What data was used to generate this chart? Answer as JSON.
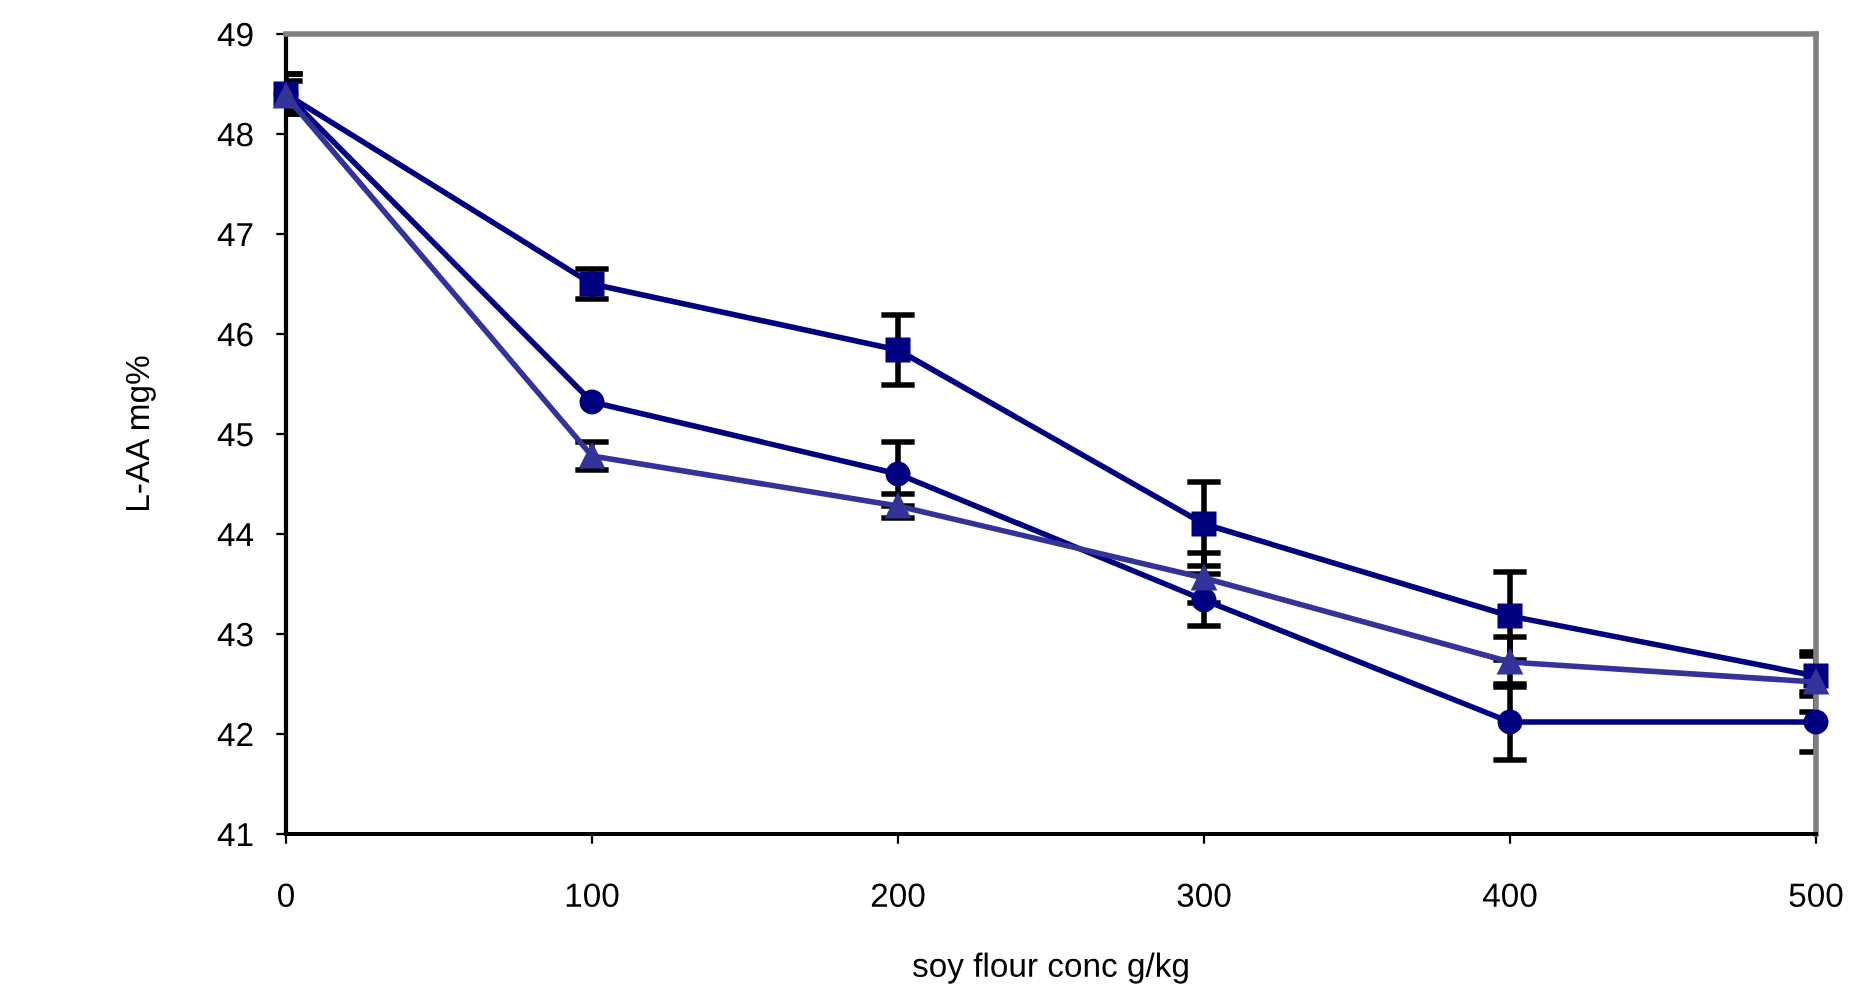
{
  "chart_data": {
    "type": "line",
    "xlabel": "soy flour conc g/kg",
    "ylabel": "L-AA mg%",
    "x": [
      0,
      100,
      200,
      300,
      400,
      500
    ],
    "xlim": [
      0,
      500
    ],
    "xticks": [
      0,
      100,
      200,
      300,
      400,
      500
    ],
    "ylim": [
      41,
      49
    ],
    "yticks": [
      41,
      42,
      43,
      44,
      45,
      46,
      47,
      48,
      49
    ],
    "grid": false,
    "series": [
      {
        "color": "#000080",
        "marker": "square",
        "values": [
          48.4,
          46.5,
          45.84,
          44.1,
          43.18,
          42.58
        ],
        "errors": [
          0.2,
          0.15,
          0.35,
          0.42,
          0.44,
          0.2
        ]
      },
      {
        "color": "#000080",
        "marker": "circle",
        "values": [
          48.4,
          45.32,
          44.6,
          43.34,
          42.12,
          42.12
        ],
        "errors": [
          0.2,
          null,
          0.32,
          0.26,
          0.38,
          0.3
        ]
      },
      {
        "color": "#333399",
        "marker": "triangle",
        "values": [
          48.38,
          44.78,
          44.28,
          43.56,
          42.72,
          42.52
        ],
        "errors": [
          0.15,
          0.14,
          0.12,
          0.25,
          0.25,
          0.3
        ]
      }
    ]
  }
}
